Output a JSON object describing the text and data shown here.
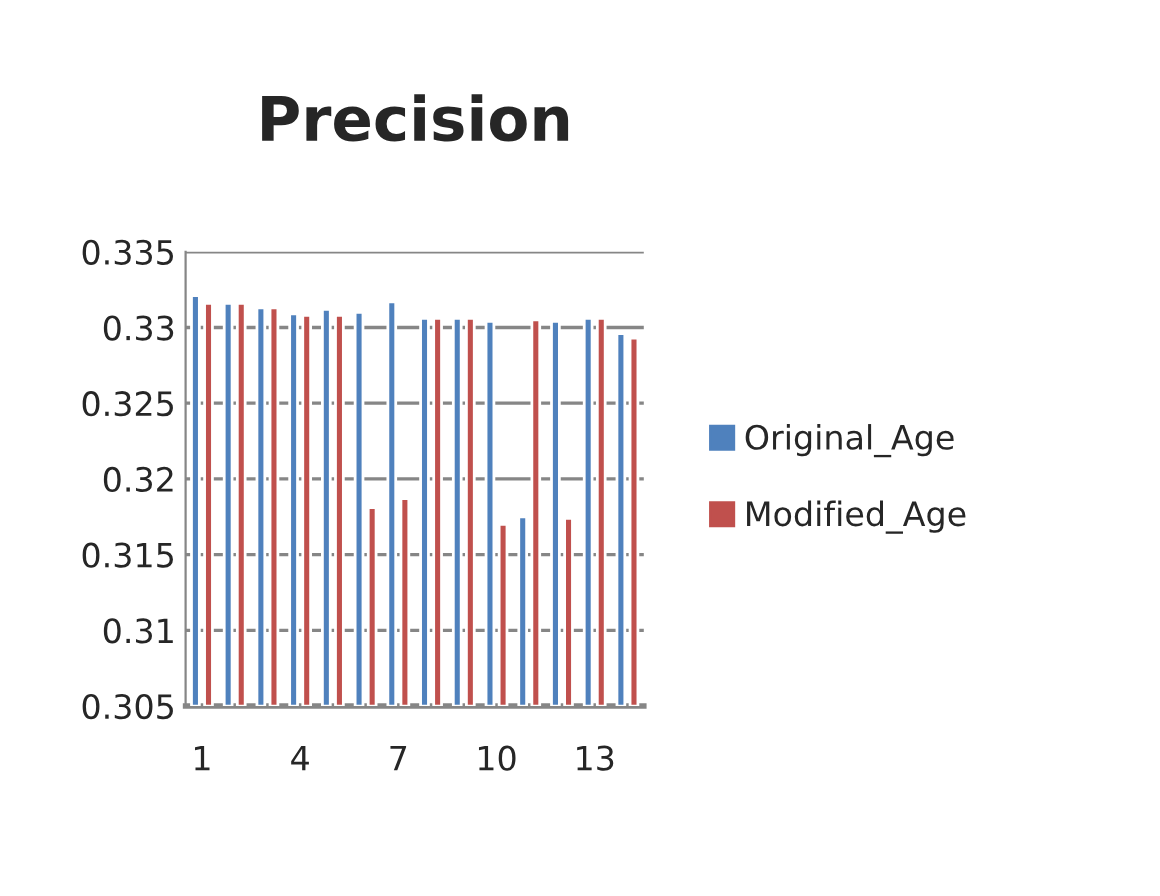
{
  "chart_data": {
    "type": "bar",
    "title": "Precision",
    "categories": [
      "1",
      null,
      null,
      "4",
      null,
      null,
      "7",
      null,
      null,
      "10",
      null,
      null,
      "13",
      null
    ],
    "series": [
      {
        "name": "Original_Age",
        "color": "#4f81bd",
        "values": [
          0.3321,
          0.3316,
          0.3313,
          0.3309,
          0.3312,
          0.331,
          0.3317,
          0.3306,
          0.3306,
          0.3304,
          0.3175,
          0.3304,
          0.3306,
          0.3296
        ]
      },
      {
        "name": "Modified_Age",
        "color": "#c0504d",
        "values": [
          0.3316,
          0.3316,
          0.3313,
          0.3308,
          0.3308,
          0.3181,
          0.3187,
          0.3306,
          0.3306,
          0.317,
          0.3305,
          0.3174,
          0.3306,
          0.3293
        ]
      }
    ],
    "ylim": [
      0.305,
      0.335
    ],
    "yticks": [
      {
        "value": 0.305,
        "label": "0.305"
      },
      {
        "value": 0.31,
        "label": "0.31"
      },
      {
        "value": 0.315,
        "label": "0.315"
      },
      {
        "value": 0.32,
        "label": "0.32"
      },
      {
        "value": 0.325,
        "label": "0.325"
      },
      {
        "value": 0.33,
        "label": "0.33"
      },
      {
        "value": 0.335,
        "label": "0.335"
      }
    ],
    "grid": "y",
    "legend": "right"
  }
}
